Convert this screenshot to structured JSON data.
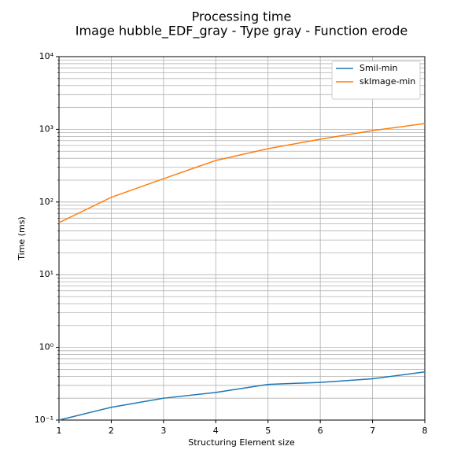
{
  "chart_data": {
    "type": "line",
    "title": "Processing time",
    "subtitle": "Image hubble_EDF_gray - Type gray - Function erode",
    "x_label": "Structuring Element size",
    "y_label": "Time (ms)",
    "x": [
      1,
      2,
      3,
      4,
      5,
      6,
      7,
      8
    ],
    "series": [
      {
        "name": "Smil-min",
        "color": "#1f77b4",
        "values": [
          0.1,
          0.15,
          0.2,
          0.24,
          0.31,
          0.33,
          0.37,
          0.46
        ]
      },
      {
        "name": "skImage-min",
        "color": "#ff7f0e",
        "values": [
          52,
          116,
          209,
          373,
          542,
          731,
          961,
          1202
        ]
      }
    ],
    "xlim": [
      1,
      8
    ],
    "xticks": [
      1,
      2,
      3,
      4,
      5,
      6,
      7,
      8
    ],
    "ylim": [
      0.1,
      10000
    ],
    "yticks": [
      {
        "value": 0.1,
        "label": "10⁻¹"
      },
      {
        "value": 1,
        "label": "10⁰"
      },
      {
        "value": 10,
        "label": "10¹"
      },
      {
        "value": 100,
        "label": "10²"
      },
      {
        "value": 1000,
        "label": "10³"
      },
      {
        "value": 10000,
        "label": "10⁴"
      }
    ],
    "y_scale": "log",
    "grid": true,
    "legend": "upper right"
  }
}
